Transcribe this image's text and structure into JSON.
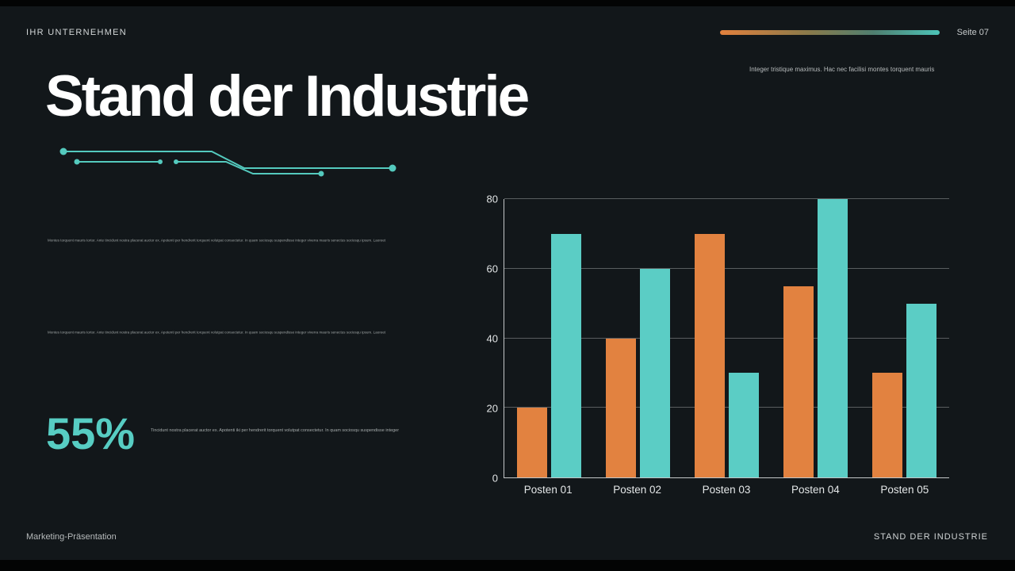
{
  "header": {
    "company": "IHR UNTERNEHMEN",
    "page_number": "Seite 07",
    "note": "Integer tristique maximus. Hac nec facilisi montes torquent mauris"
  },
  "title": "Stand der Industrie",
  "body": {
    "paragraph1": "Montes torquent mauris tortor. Ante tincidunt nostra placerat auctor ex. Apotenti per hendrerit torquent volutpat consectetur. In quam sociosqu suspendisse integer viverra mauris senectus sociosqu ipsum. Laoreet",
    "paragraph2": "Montes torquent mauris tortor. Ante tincidunt nostra placerat auctor ex. Apotenti per hendrerit torquent volutpat consectetur. In quam sociosqu suspendisse integer viverra mauris senectus sociosqu ipsum. Laoreet",
    "stat_value": "55%",
    "stat_caption": "Tincidunt nostra placerat auctor ex. Apotenti iki per hendrerit torquent volutpat consectetur. In quam sociosqu suspendisse integer"
  },
  "footer": {
    "left": "Marketing-Präsentation",
    "right": "STAND DER INDUSTRIE"
  },
  "colors": {
    "accent_teal": "#57cdc3",
    "accent_orange": "#e28240",
    "slide_bg": "#12171a"
  },
  "chart_data": {
    "type": "bar",
    "categories": [
      "Posten 01",
      "Posten 02",
      "Posten 03",
      "Posten 04",
      "Posten 05"
    ],
    "series": [
      {
        "name": "series-1",
        "color": "#e28240",
        "values": [
          20,
          40,
          70,
          55,
          30
        ]
      },
      {
        "name": "series-2",
        "color": "#5bcdc5",
        "values": [
          70,
          60,
          30,
          80,
          50
        ]
      }
    ],
    "title": "",
    "xlabel": "",
    "ylabel": "",
    "ylim": [
      0,
      80
    ],
    "yticks": [
      0,
      20,
      40,
      60,
      80
    ],
    "grid": true,
    "legend": false
  }
}
